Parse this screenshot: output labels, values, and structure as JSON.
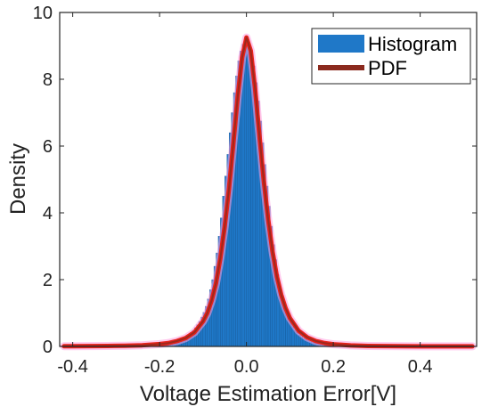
{
  "chart_data": {
    "type": "bar",
    "title": "",
    "xlabel": "Voltage Estimation Error[V]",
    "ylabel": "Density",
    "xlim": [
      -0.43,
      0.53
    ],
    "ylim": [
      0,
      10
    ],
    "xticks": [
      -0.4,
      -0.2,
      0.0,
      0.2,
      0.4
    ],
    "xtick_labels": [
      "-0.4",
      "-0.2",
      "0.0",
      "0.2",
      "0.4"
    ],
    "yticks": [
      0,
      2,
      4,
      6,
      8,
      10
    ],
    "ytick_labels": [
      "0",
      "2",
      "4",
      "6",
      "8",
      "10"
    ],
    "grid": false,
    "legend_position": "top-right",
    "series": [
      {
        "name": "Histogram",
        "kind": "histogram",
        "color": "#1f78c8",
        "bin_width": 0.005,
        "bin_centers": [
          -0.1975,
          -0.1925,
          -0.1875,
          -0.1825,
          -0.1775,
          -0.1725,
          -0.1675,
          -0.1625,
          -0.1575,
          -0.1525,
          -0.1475,
          -0.1425,
          -0.1375,
          -0.1325,
          -0.1275,
          -0.1225,
          -0.1175,
          -0.1125,
          -0.1075,
          -0.1025,
          -0.0975,
          -0.0925,
          -0.0875,
          -0.0825,
          -0.0775,
          -0.0725,
          -0.0675,
          -0.0625,
          -0.0575,
          -0.0525,
          -0.0475,
          -0.0425,
          -0.0375,
          -0.0325,
          -0.0275,
          -0.0225,
          -0.0175,
          -0.0125,
          -0.0075,
          -0.0025,
          0.0025,
          0.0075,
          0.0125,
          0.0175,
          0.0225,
          0.0275,
          0.0325,
          0.0375,
          0.0425,
          0.0475,
          0.0525,
          0.0575,
          0.0625,
          0.0675,
          0.0725,
          0.0775,
          0.0825,
          0.0875,
          0.0925,
          0.0975,
          0.1025,
          0.1075,
          0.1125,
          0.1175,
          0.1225,
          0.1275,
          0.1325,
          0.1375,
          0.1425,
          0.1475,
          0.1525,
          0.1575,
          0.1625,
          0.1675,
          0.1725,
          0.1775,
          0.1825,
          0.1875,
          0.1925,
          0.1975
        ],
        "values": [
          0.07,
          0.08,
          0.09,
          0.1,
          0.11,
          0.13,
          0.15,
          0.16,
          0.19,
          0.21,
          0.24,
          0.28,
          0.32,
          0.36,
          0.42,
          0.48,
          0.56,
          0.65,
          0.75,
          0.88,
          1.02,
          1.2,
          1.42,
          1.7,
          2.0,
          2.4,
          2.8,
          3.3,
          3.85,
          4.5,
          5.1,
          5.75,
          6.4,
          7.0,
          7.6,
          8.1,
          8.55,
          8.85,
          9.05,
          9.1,
          9.1,
          8.95,
          8.75,
          8.4,
          7.9,
          7.35,
          6.75,
          6.1,
          5.45,
          4.8,
          4.2,
          3.6,
          3.05,
          2.6,
          2.15,
          1.8,
          1.5,
          1.25,
          1.03,
          0.86,
          0.72,
          0.6,
          0.5,
          0.42,
          0.35,
          0.3,
          0.25,
          0.21,
          0.18,
          0.15,
          0.13,
          0.11,
          0.09,
          0.08,
          0.07,
          0.06,
          0.05,
          0.04,
          0.035,
          0.03
        ]
      },
      {
        "name": "PDF",
        "kind": "line",
        "color": "#8b2a1e",
        "x": [
          -0.42,
          -0.4,
          -0.36,
          -0.32,
          -0.28,
          -0.24,
          -0.2,
          -0.18,
          -0.16,
          -0.14,
          -0.12,
          -0.1,
          -0.09,
          -0.08,
          -0.07,
          -0.06,
          -0.05,
          -0.04,
          -0.03,
          -0.02,
          -0.01,
          0.0,
          0.01,
          0.02,
          0.03,
          0.04,
          0.05,
          0.06,
          0.07,
          0.08,
          0.09,
          0.1,
          0.12,
          0.14,
          0.16,
          0.18,
          0.2,
          0.24,
          0.28,
          0.32,
          0.36,
          0.4,
          0.44,
          0.48,
          0.52
        ],
        "y": [
          0.005,
          0.006,
          0.009,
          0.013,
          0.02,
          0.035,
          0.07,
          0.1,
          0.16,
          0.25,
          0.42,
          0.75,
          1.0,
          1.38,
          1.9,
          2.65,
          3.6,
          4.75,
          6.1,
          7.5,
          8.65,
          9.25,
          8.85,
          7.7,
          6.3,
          4.95,
          3.8,
          2.85,
          2.1,
          1.55,
          1.15,
          0.85,
          0.47,
          0.27,
          0.16,
          0.1,
          0.065,
          0.03,
          0.015,
          0.009,
          0.006,
          0.004,
          0.003,
          0.002,
          0.002
        ]
      }
    ]
  }
}
